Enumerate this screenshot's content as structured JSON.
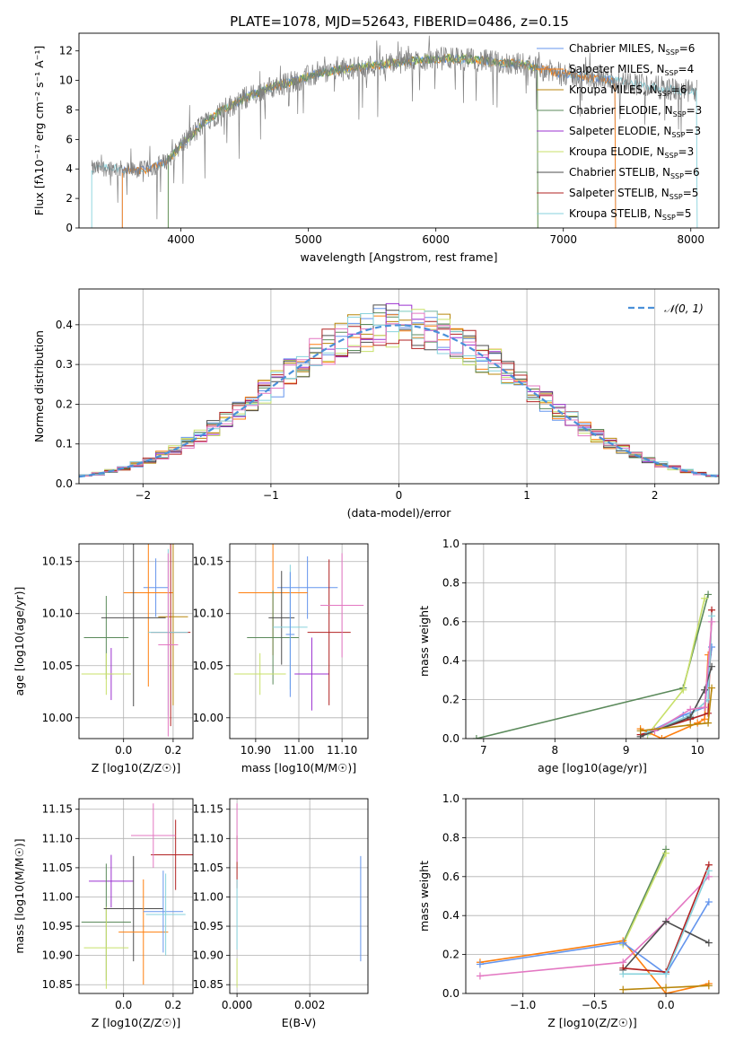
{
  "figure_title": "PLATE=1078, MJD=52643, FIBERID=0486, z=0.15",
  "colors": {
    "Chabrier MILES": "#6495ed",
    "Salpeter MILES": "#ff7f0e",
    "Kroupa MILES": "#b8860b",
    "Chabrier ELODIE": "#5b8a5b",
    "Salpeter ELODIE": "#9b30d0",
    "Kroupa ELODIE": "#c8e06a",
    "Chabrier STELIB": "#4d4d4d",
    "Salpeter STELIB": "#b22222",
    "Kroupa STELIB": "#87d2dc",
    "data": "#808080",
    "gaussian": "#4a90d9",
    "pink": "#e377c2"
  },
  "chart_data": [
    {
      "id": "spectrum",
      "type": "line",
      "title": "PLATE=1078, MJD=52643, FIBERID=0486, z=0.15",
      "xlabel": "wavelength [Angstrom, rest frame]",
      "ylabel": "Flux [fλ10⁻¹⁷ erg cm⁻² s⁻¹ A⁻¹]",
      "xlim": [
        3200,
        8220
      ],
      "ylim": [
        0,
        13.2
      ],
      "xticks": [
        4000,
        5000,
        6000,
        7000,
        8000
      ],
      "yticks": [
        0,
        2,
        4,
        6,
        8,
        10,
        12
      ],
      "legend_position": "top-right",
      "legend": [
        {
          "label": "Chabrier MILES, N_SSP=6",
          "text": "Chabrier MILES, N",
          "sub": "SSP",
          "n": "=6",
          "color_key": "Chabrier MILES"
        },
        {
          "label": "Salpeter MILES, N_SSP=4",
          "text": "Salpeter MILES, N",
          "sub": "SSP",
          "n": "=4",
          "color_key": "Salpeter MILES"
        },
        {
          "label": "Kroupa MILES, N_SSP=6",
          "text": "Kroupa MILES, N",
          "sub": "SSP",
          "n": "=6",
          "color_key": "Kroupa MILES"
        },
        {
          "label": "Chabrier ELODIE, N_SSP=3",
          "text": "Chabrier ELODIE, N",
          "sub": "SSP",
          "n": "=3",
          "color_key": "Chabrier ELODIE"
        },
        {
          "label": "Salpeter ELODIE, N_SSP=3",
          "text": "Salpeter ELODIE, N",
          "sub": "SSP",
          "n": "=3",
          "color_key": "Salpeter ELODIE"
        },
        {
          "label": "Kroupa ELODIE, N_SSP=3",
          "text": "Kroupa ELODIE, N",
          "sub": "SSP",
          "n": "=3",
          "color_key": "Kroupa ELODIE"
        },
        {
          "label": "Chabrier STELIB, N_SSP=6",
          "text": "Chabrier STELIB, N",
          "sub": "SSP",
          "n": "=6",
          "color_key": "Chabrier STELIB"
        },
        {
          "label": "Salpeter STELIB, N_SSP=5",
          "text": "Salpeter STELIB, N",
          "sub": "SSP",
          "n": "=5",
          "color_key": "Salpeter STELIB"
        },
        {
          "label": "Kroupa STELIB, N_SSP=5",
          "text": "Kroupa STELIB, N",
          "sub": "SSP",
          "n": "=5",
          "color_key": "Kroupa STELIB"
        }
      ],
      "continuum": [
        [
          3300,
          4.0
        ],
        [
          3450,
          4.1
        ],
        [
          3600,
          3.9
        ],
        [
          3750,
          4.0
        ],
        [
          3900,
          4.6
        ],
        [
          4000,
          5.6
        ],
        [
          4100,
          6.4
        ],
        [
          4200,
          7.3
        ],
        [
          4350,
          8.1
        ],
        [
          4500,
          8.8
        ],
        [
          4700,
          9.5
        ],
        [
          4900,
          10.0
        ],
        [
          5100,
          10.5
        ],
        [
          5300,
          10.8
        ],
        [
          5500,
          11.0
        ],
        [
          5700,
          11.2
        ],
        [
          5900,
          11.4
        ],
        [
          6100,
          11.5
        ],
        [
          6300,
          11.4
        ],
        [
          6500,
          11.2
        ],
        [
          6700,
          11.1
        ],
        [
          6900,
          10.6
        ],
        [
          7100,
          10.3
        ],
        [
          7300,
          10.1
        ],
        [
          7500,
          9.9
        ],
        [
          7700,
          9.6
        ],
        [
          7900,
          9.3
        ],
        [
          8050,
          9.3
        ]
      ],
      "spectrum_range": [
        3300,
        8050
      ],
      "model_cutoffs": {
        "MILES_blue": 3540,
        "MILES_red": 7410,
        "ELODIE_blue": 3900,
        "ELODIE_red": 6800
      }
    },
    {
      "id": "residuals",
      "type": "histogram",
      "xlabel": "(data-model)/error",
      "ylabel": "Normed distribution",
      "xlim": [
        -2.5,
        2.5
      ],
      "ylim": [
        0,
        0.49
      ],
      "xticks": [
        -2,
        -1,
        0,
        1,
        2
      ],
      "yticks": [
        0.0,
        0.1,
        0.2,
        0.3,
        0.4
      ],
      "legend_position": "top-right",
      "legend_label": "N(0,1)",
      "bin_width": 0.1
    },
    {
      "id": "age_vs_Z",
      "type": "scatter",
      "xlabel": "Z [log10(Z/Z☉)]",
      "ylabel": "age [log10(age/yr)]",
      "xlim": [
        -0.18,
        0.28
      ],
      "ylim": [
        9.98,
        10.167
      ],
      "xticks": [
        0.0,
        0.2
      ],
      "yticks": [
        10.0,
        10.05,
        10.1,
        10.15
      ],
      "points": [
        {
          "c": "Chabrier MILES",
          "x": 0.13,
          "xe": 0.05,
          "y": 10.125,
          "ye": 0.028
        },
        {
          "c": "Salpeter MILES",
          "x": 0.1,
          "xe": 0.1,
          "y": 10.12,
          "ye": 0.09
        },
        {
          "c": "Kroupa MILES",
          "x": 0.2,
          "xe": 0.06,
          "y": 10.097,
          "ye": 0.085
        },
        {
          "c": "Chabrier ELODIE",
          "x": -0.07,
          "xe": 0.09,
          "y": 10.077,
          "ye": 0.04
        },
        {
          "c": "Salpeter ELODIE",
          "x": -0.05,
          "xe": 0.01,
          "y": 10.042,
          "ye": 0.025
        },
        {
          "c": "Kroupa ELODIE",
          "x": -0.07,
          "xe": 0.1,
          "y": 10.042,
          "ye": 0.02
        },
        {
          "c": "Chabrier STELIB",
          "x": 0.04,
          "xe": 0.13,
          "y": 10.096,
          "ye": 0.085
        },
        {
          "c": "Salpeter STELIB",
          "x": 0.19,
          "xe": 0.08,
          "y": 10.082,
          "ye": 0.09
        },
        {
          "c": "Kroupa STELIB",
          "x": 0.18,
          "xe": 0.08,
          "y": 10.082,
          "ye": 0.08
        },
        {
          "c": "pink",
          "x": 0.18,
          "xe": 0.04,
          "y": 10.07,
          "ye": 0.088
        }
      ]
    },
    {
      "id": "age_vs_mass",
      "type": "scatter",
      "xlabel": "mass [log10(M/M☉)]",
      "ylabel": "",
      "xlim": [
        10.84,
        11.16
      ],
      "ylim": [
        9.98,
        10.167
      ],
      "xticks": [
        10.9,
        11.0,
        11.1
      ],
      "yticks": [
        10.0,
        10.05,
        10.1,
        10.15
      ],
      "points": [
        {
          "c": "Chabrier MILES",
          "x": 11.02,
          "xe": 0.07,
          "y": 10.125,
          "ye": 0.03
        },
        {
          "c": "Salpeter MILES",
          "x": 10.94,
          "xe": 0.08,
          "y": 10.12,
          "ye": 0.06
        },
        {
          "c": "Chabrier ELODIE",
          "x": 10.94,
          "xe": 0.06,
          "y": 10.077,
          "ye": 0.045
        },
        {
          "c": "Kroupa ELODIE",
          "x": 10.91,
          "xe": 0.06,
          "y": 10.042,
          "ye": 0.02
        },
        {
          "c": "Salpeter ELODIE",
          "x": 11.03,
          "xe": 0.04,
          "y": 10.042,
          "ye": 0.035
        },
        {
          "c": "Chabrier STELIB",
          "x": 10.96,
          "xe": 0.03,
          "y": 10.096,
          "ye": 0.045
        },
        {
          "c": "Salpeter STELIB",
          "x": 11.07,
          "xe": 0.05,
          "y": 10.082,
          "ye": 0.07
        },
        {
          "c": "Kroupa STELIB",
          "x": 10.98,
          "xe": 0.04,
          "y": 10.087,
          "ye": 0.06
        },
        {
          "c": "Chabrier MILES",
          "x": 10.98,
          "xe": 0.01,
          "y": 10.08,
          "ye": 0.06
        },
        {
          "c": "pink",
          "x": 11.1,
          "xe": 0.05,
          "y": 10.108,
          "ye": 0.05
        }
      ]
    },
    {
      "id": "massweight_vs_age",
      "type": "line",
      "xlabel": "age [log10(age/yr)]",
      "ylabel": "mass weight",
      "xlim": [
        6.75,
        10.3
      ],
      "ylim": [
        0,
        1.0
      ],
      "xticks": [
        7,
        8,
        9,
        10
      ],
      "yticks": [
        0.0,
        0.2,
        0.4,
        0.6,
        0.8,
        1.0
      ],
      "series": [
        {
          "c": "Chabrier ELODIE",
          "x": [
            6.9,
            9.8,
            10.15
          ],
          "y": [
            0.0,
            0.26,
            0.74
          ]
        },
        {
          "c": "Kroupa ELODIE",
          "x": [
            9.3,
            9.8,
            10.1
          ],
          "y": [
            0.02,
            0.25,
            0.72
          ]
        },
        {
          "c": "Salpeter MILES",
          "x": [
            9.2,
            9.5,
            10.0,
            10.1,
            10.15
          ],
          "y": [
            0.05,
            0.0,
            0.08,
            0.1,
            0.43
          ]
        },
        {
          "c": "Chabrier MILES",
          "x": [
            9.3,
            9.8,
            10.1,
            10.2
          ],
          "y": [
            0.03,
            0.12,
            0.16,
            0.47
          ]
        },
        {
          "c": "Salpeter STELIB",
          "x": [
            9.2,
            9.9,
            10.15,
            10.2
          ],
          "y": [
            0.02,
            0.1,
            0.13,
            0.66
          ]
        },
        {
          "c": "Kroupa STELIB",
          "x": [
            9.3,
            9.9,
            10.15,
            10.2
          ],
          "y": [
            0.03,
            0.12,
            0.2,
            0.63
          ]
        },
        {
          "c": "Chabrier STELIB",
          "x": [
            9.2,
            9.9,
            10.1,
            10.2
          ],
          "y": [
            0.01,
            0.11,
            0.25,
            0.37
          ]
        },
        {
          "c": "pink",
          "x": [
            9.4,
            9.9,
            10.1,
            10.2
          ],
          "y": [
            0.04,
            0.15,
            0.16,
            0.6
          ]
        },
        {
          "c": "Kroupa MILES",
          "x": [
            9.2,
            9.9,
            10.15,
            10.2
          ],
          "y": [
            0.04,
            0.07,
            0.08,
            0.26
          ]
        }
      ]
    },
    {
      "id": "mass_vs_Z",
      "type": "scatter",
      "xlabel": "Z [log10(Z/Z☉)]",
      "ylabel": "mass [log10(M/M☉)]",
      "xlim": [
        -0.18,
        0.28
      ],
      "ylim": [
        10.835,
        11.168
      ],
      "xticks": [
        0.0,
        0.2
      ],
      "yticks": [
        10.85,
        10.9,
        10.95,
        11.0,
        11.05,
        11.1,
        11.15
      ],
      "points": [
        {
          "c": "Salpeter ELODIE",
          "x": -0.05,
          "xe": 0.09,
          "y": 11.027,
          "ye": 0.045
        },
        {
          "c": "Chabrier ELODIE",
          "x": -0.07,
          "xe": 0.1,
          "y": 10.957,
          "ye": 0.1
        },
        {
          "c": "Kroupa ELODIE",
          "x": -0.07,
          "xe": 0.09,
          "y": 10.913,
          "ye": 0.07
        },
        {
          "c": "Chabrier STELIB",
          "x": 0.04,
          "xe": 0.12,
          "y": 10.98,
          "ye": 0.09
        },
        {
          "c": "Salpeter MILES",
          "x": 0.08,
          "xe": 0.1,
          "y": 10.94,
          "ye": 0.09
        },
        {
          "c": "Chabrier MILES",
          "x": 0.16,
          "xe": 0.08,
          "y": 10.975,
          "ye": 0.07
        },
        {
          "c": "Kroupa STELIB",
          "x": 0.17,
          "xe": 0.08,
          "y": 10.97,
          "ye": 0.07
        },
        {
          "c": "Salpeter STELIB",
          "x": 0.21,
          "xe": 0.1,
          "y": 11.072,
          "ye": 0.06
        },
        {
          "c": "pink",
          "x": 0.12,
          "xe": 0.09,
          "y": 11.105,
          "ye": 0.055
        }
      ]
    },
    {
      "id": "mass_vs_EBV",
      "type": "scatter",
      "xlabel": "E(B-V)",
      "ylabel": "",
      "xlim": [
        -0.0002,
        0.0036
      ],
      "ylim": [
        10.835,
        11.168
      ],
      "xticks": [
        0.0,
        0.002
      ],
      "yticks": [
        10.85,
        10.9,
        10.95,
        11.0,
        11.05,
        11.1,
        11.15
      ],
      "xticklabels": [
        "0.000",
        "0.002"
      ],
      "points": [
        {
          "c": "Salpeter STELIB",
          "x": 0.0,
          "xe": 0.0,
          "y": 11.06,
          "ye": 0.045
        },
        {
          "c": "pink",
          "x": 0.0,
          "xe": 0.0,
          "y": 11.11,
          "ye": 0.05
        },
        {
          "c": "Kroupa ELODIE",
          "x": 0.0,
          "xe": 0.0,
          "y": 10.87,
          "ye": 0.025
        },
        {
          "c": "Kroupa STELIB",
          "x": 0.0,
          "xe": 0.0,
          "y": 10.97,
          "ye": 0.06
        },
        {
          "c": "Chabrier MILES",
          "x": 0.0034,
          "xe": 0.0,
          "y": 10.98,
          "ye": 0.09
        }
      ]
    },
    {
      "id": "massweight_vs_Z",
      "type": "line",
      "xlabel": "Z [log10(Z/Z☉)]",
      "ylabel": "mass weight",
      "xlim": [
        -1.4,
        0.37
      ],
      "ylim": [
        0,
        1.0
      ],
      "xticks": [
        -1.0,
        -0.5,
        0.0
      ],
      "yticks": [
        0.0,
        0.2,
        0.4,
        0.6,
        0.8,
        1.0
      ],
      "series": [
        {
          "c": "Chabrier ELODIE",
          "x": [
            -0.3,
            0.0
          ],
          "y": [
            0.26,
            0.74
          ]
        },
        {
          "c": "Kroupa ELODIE",
          "x": [
            -0.3,
            0.0
          ],
          "y": [
            0.25,
            0.72
          ]
        },
        {
          "c": "Salpeter MILES",
          "x": [
            -1.3,
            -0.3,
            0.0,
            0.3
          ],
          "y": [
            0.16,
            0.27,
            0.0,
            0.05
          ]
        },
        {
          "c": "Chabrier MILES",
          "x": [
            -1.3,
            -0.3,
            0.0,
            0.3
          ],
          "y": [
            0.15,
            0.26,
            0.1,
            0.47
          ]
        },
        {
          "c": "pink",
          "x": [
            -1.3,
            -0.3,
            0.0,
            0.3
          ],
          "y": [
            0.09,
            0.16,
            0.37,
            0.6
          ]
        },
        {
          "c": "Chabrier STELIB",
          "x": [
            -0.3,
            0.0,
            0.3
          ],
          "y": [
            0.12,
            0.37,
            0.26
          ]
        },
        {
          "c": "Salpeter STELIB",
          "x": [
            -0.3,
            0.0,
            0.3
          ],
          "y": [
            0.13,
            0.11,
            0.66
          ]
        },
        {
          "c": "Kroupa STELIB",
          "x": [
            -0.3,
            0.0,
            0.3
          ],
          "y": [
            0.1,
            0.1,
            0.63
          ]
        },
        {
          "c": "Kroupa MILES",
          "x": [
            -0.3,
            0.0,
            0.3
          ],
          "y": [
            0.02,
            0.03,
            0.04
          ]
        }
      ]
    }
  ]
}
